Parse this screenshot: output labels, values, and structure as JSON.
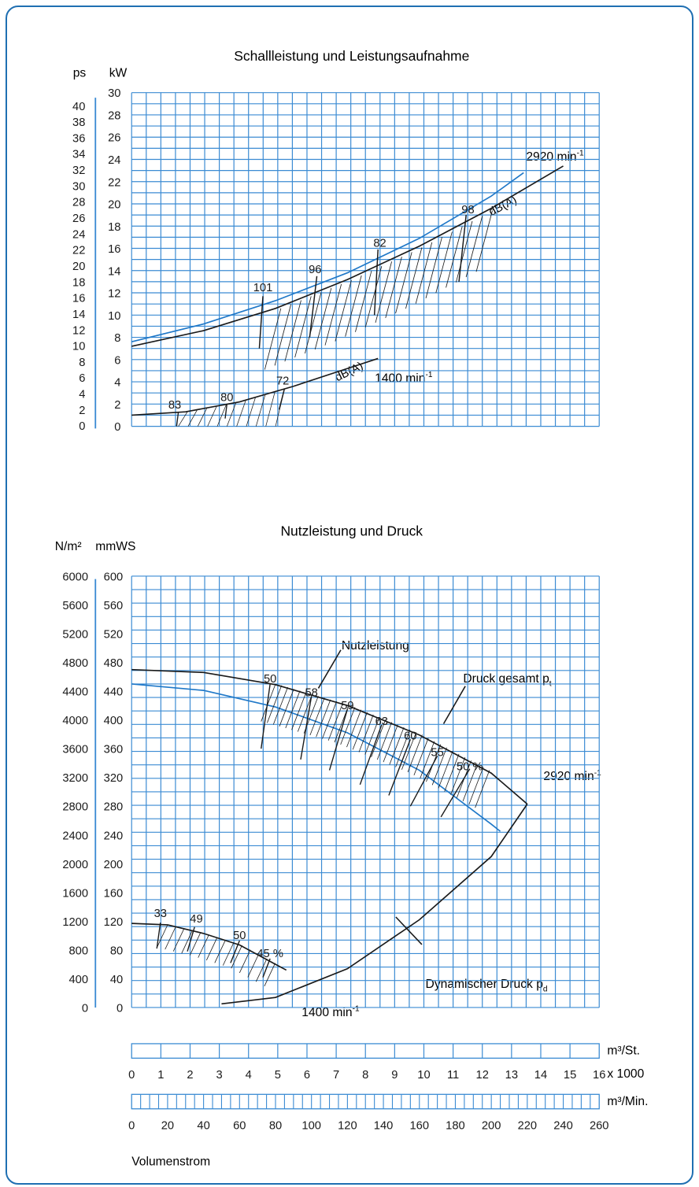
{
  "colors": {
    "grid": "#3b8bd3",
    "frame": "#1f6fb2",
    "curve_black": "#1a1a1a",
    "curve_blue": "#1f78c8"
  },
  "chart_data": [
    {
      "type": "line",
      "title": "Schallleistung und Leistungsaufnahme",
      "ylabel_ps": "ps",
      "ylabel_kw": "kW",
      "ps_ticks": [
        "40",
        "38",
        "36",
        "34",
        "32",
        "30",
        "28",
        "26",
        "24",
        "22",
        "20",
        "18",
        "16",
        "14",
        "12",
        "10",
        "8",
        "6",
        "4",
        "2",
        "0"
      ],
      "kw_ticks": [
        "30",
        "28",
        "26",
        "24",
        "22",
        "20",
        "18",
        "16",
        "14",
        "12",
        "10",
        "8",
        "6",
        "4",
        "2",
        "0"
      ],
      "x_unit": "m³/Min.",
      "xlim": [
        0,
        260
      ],
      "ylim_kw": [
        0,
        30
      ],
      "series": [
        {
          "name": "2920 min-1",
          "label": "2920 min",
          "superscript": "-1",
          "color": "black",
          "points": [
            [
              0,
              7.2
            ],
            [
              40,
              8.6
            ],
            [
              80,
              10.6
            ],
            [
              120,
              13.2
            ],
            [
              160,
              16.2
            ],
            [
              200,
              19.6
            ],
            [
              240,
              23.4
            ]
          ]
        },
        {
          "name": "dB(A) 2920",
          "label": "dB(A)",
          "color": "blue",
          "points": [
            [
              0,
              7.6
            ],
            [
              40,
              9.2
            ],
            [
              80,
              11.3
            ],
            [
              120,
              13.8
            ],
            [
              160,
              16.9
            ],
            [
              200,
              20.7
            ],
            [
              218,
              22.8
            ]
          ]
        },
        {
          "name": "1400 min-1",
          "label": "1400 min",
          "superscript": "-1",
          "color": "black",
          "points": [
            [
              0,
              1.0
            ],
            [
              30,
              1.3
            ],
            [
              60,
              2.2
            ],
            [
              90,
              3.6
            ],
            [
              120,
              5.2
            ],
            [
              137,
              6.1
            ]
          ]
        }
      ],
      "hatch_labels": [
        {
          "text": "101",
          "x": 73,
          "kw": 11.9
        },
        {
          "text": "96",
          "x": 102,
          "kw": 13.5
        },
        {
          "text": "82",
          "x": 138,
          "kw": 15.9
        },
        {
          "text": "98",
          "x": 187,
          "kw": 18.9
        },
        {
          "text": "83",
          "x": 24,
          "kw": 1.35
        },
        {
          "text": "80",
          "x": 53,
          "kw": 2.0
        },
        {
          "text": "72",
          "x": 84,
          "kw": 3.5
        }
      ],
      "db_label_1400": "dB(A)"
    },
    {
      "type": "line",
      "title": "Nutzleistung und Druck",
      "ylabel_nm": "N/m²",
      "ylabel_mmws": "mmWS",
      "nm_ticks": [
        "6000",
        "5600",
        "5200",
        "4800",
        "4400",
        "4000",
        "3600",
        "3200",
        "2800",
        "2400",
        "2000",
        "1600",
        "1200",
        "800",
        "400",
        "0"
      ],
      "mmws_ticks": [
        "600",
        "560",
        "520",
        "480",
        "440",
        "400",
        "360",
        "320",
        "280",
        "240",
        "200",
        "160",
        "120",
        "80",
        "40",
        "0"
      ],
      "xlim": [
        0,
        260
      ],
      "ylim_mmws": [
        0,
        600
      ],
      "series": [
        {
          "name": "Druck gesamt pt 2920",
          "color": "black",
          "points": [
            [
              0,
              470
            ],
            [
              40,
              466
            ],
            [
              80,
              449
            ],
            [
              120,
              420
            ],
            [
              160,
              379
            ],
            [
              200,
              326
            ],
            [
              220,
              283
            ]
          ]
        },
        {
          "name": "Nutzleistung",
          "color": "blue",
          "points": [
            [
              0,
              450
            ],
            [
              40,
              441
            ],
            [
              80,
              418
            ],
            [
              120,
              382
            ],
            [
              160,
              330
            ],
            [
              200,
              255
            ],
            [
              205,
              245
            ]
          ]
        },
        {
          "name": "Dynamischer Druck pd",
          "color": "black",
          "points": [
            [
              50,
              5
            ],
            [
              80,
              14
            ],
            [
              120,
              54
            ],
            [
              160,
              122
            ],
            [
              200,
              210
            ],
            [
              220,
              283
            ]
          ]
        },
        {
          "name": "1400 min-1",
          "color": "black",
          "points": [
            [
              0,
              117
            ],
            [
              20,
              115
            ],
            [
              40,
              103
            ],
            [
              60,
              87
            ],
            [
              80,
              60
            ],
            [
              86,
              52
            ]
          ]
        }
      ],
      "efficiency_labels": [
        {
          "text": "50",
          "x": 77,
          "mmws": 452
        },
        {
          "text": "58",
          "x": 100,
          "mmws": 433
        },
        {
          "text": "59",
          "x": 120,
          "mmws": 415
        },
        {
          "text": "63",
          "x": 139,
          "mmws": 393
        },
        {
          "text": "60",
          "x": 155,
          "mmws": 373
        },
        {
          "text": "55",
          "x": 170,
          "mmws": 350
        },
        {
          "text": "50 %",
          "x": 188,
          "mmws": 330
        },
        {
          "text": "33",
          "x": 16,
          "mmws": 126
        },
        {
          "text": "49",
          "x": 36,
          "mmws": 118
        },
        {
          "text": "50",
          "x": 60,
          "mmws": 95
        },
        {
          "text": "45 %",
          "x": 77,
          "mmws": 70
        }
      ],
      "annotations": {
        "nutzleistung": "Nutzleistung",
        "druck_gesamt": "Druck gesamt p",
        "druck_gesamt_sub": "t",
        "speed_2920": "2920 min",
        "speed_1400": "1400 min",
        "superscript": "-1",
        "dynamischer": "Dynamischer Druck p",
        "dynamischer_sub": "d"
      }
    }
  ],
  "scales": {
    "m3_st_unit": "m³/St.",
    "m3_st_labels": [
      "0",
      "1",
      "2",
      "3",
      "4",
      "5",
      "6",
      "7",
      "8",
      "9",
      "10",
      "11",
      "12",
      "13",
      "14",
      "15",
      "16"
    ],
    "m3_st_suffix": "x 1000",
    "m3_min_unit": "m³/Min.",
    "m3_min_labels": [
      "0",
      "20",
      "40",
      "60",
      "80",
      "100",
      "120",
      "140",
      "160",
      "180",
      "200",
      "220",
      "240",
      "260"
    ],
    "axis_title": "Volumenstrom"
  }
}
